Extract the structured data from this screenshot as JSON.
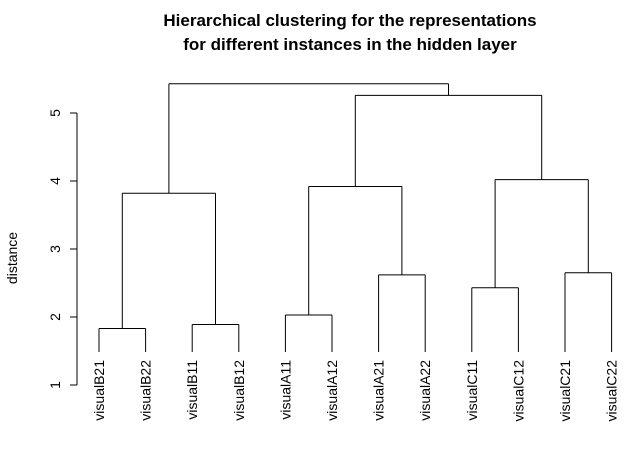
{
  "chart_data": {
    "type": "dendrogram",
    "title": "Hierarchical clustering for the representations",
    "subtitle": "for different instances in the hidden layer",
    "ylabel": "distance",
    "xlabel": "",
    "ylim": [
      1,
      5.5
    ],
    "yticks": [
      1,
      2,
      3,
      4,
      5
    ],
    "leaves": [
      "visualB21",
      "visualB22",
      "visualB11",
      "visualB12",
      "visualA11",
      "visualA12",
      "visualA21",
      "visualA22",
      "visualC11",
      "visualC12",
      "visualC21",
      "visualC22"
    ],
    "merges": [
      {
        "left": "visualB21",
        "right": "visualB22",
        "height": 1.83
      },
      {
        "left": "visualB11",
        "right": "visualB12",
        "height": 1.89
      },
      {
        "left": "visualA11",
        "right": "visualA12",
        "height": 2.03
      },
      {
        "left": "visualA21",
        "right": "visualA22",
        "height": 2.62
      },
      {
        "left": "visualC11",
        "right": "visualC12",
        "height": 2.43
      },
      {
        "left": "visualC21",
        "right": "visualC22",
        "height": 2.65
      },
      {
        "left": "B2",
        "right": "B1",
        "height": 3.82
      },
      {
        "left": "A1",
        "right": "A2",
        "height": 3.92
      },
      {
        "left": "C1",
        "right": "C2",
        "height": 4.02
      },
      {
        "left": "A",
        "right": "C",
        "height": 5.26
      },
      {
        "left": "B",
        "right": "AC",
        "height": 5.43
      }
    ],
    "grid": false,
    "line_color": "#000000"
  }
}
